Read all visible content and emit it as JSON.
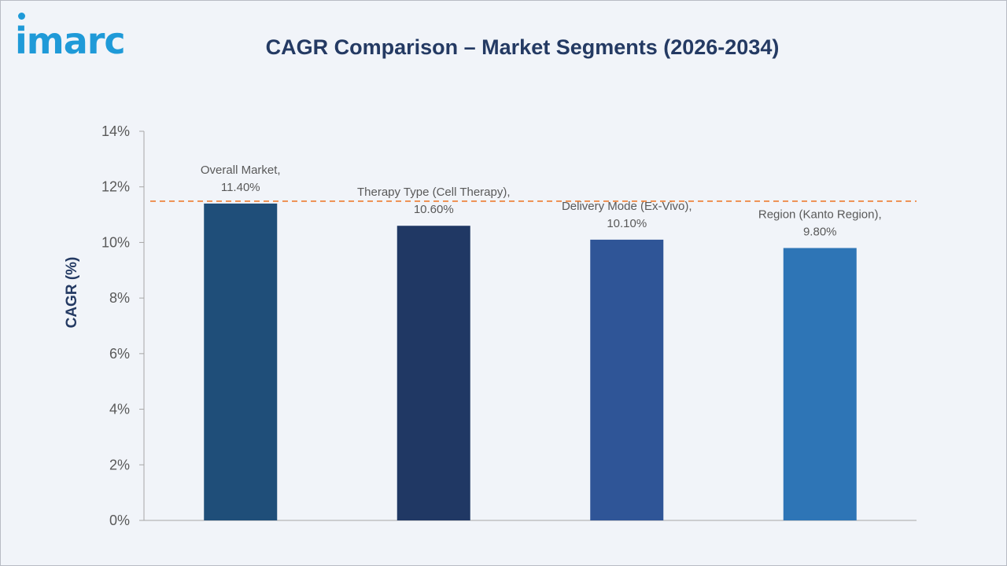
{
  "brand": {
    "logo_text": "imarc",
    "logo_color": "#1f9ad8"
  },
  "chart_data": {
    "type": "bar",
    "title": "CAGR Comparison – Market Segments (2026-2034)",
    "xlabel": "",
    "ylabel": "CAGR (%)",
    "ylim": [
      0,
      14
    ],
    "yticks": [
      "0%",
      "2%",
      "4%",
      "6%",
      "8%",
      "10%",
      "12%",
      "14%"
    ],
    "ytick_values": [
      0,
      2,
      4,
      6,
      8,
      10,
      12,
      14
    ],
    "grid": false,
    "legend": "none",
    "categories": [
      "Overall Market",
      "Therapy Type (Cell Therapy)",
      "Delivery Mode (Ex-Vivo)",
      "Region (Kanto Region)"
    ],
    "values": [
      11.4,
      10.6,
      10.1,
      9.8
    ],
    "data_labels": [
      [
        "Overall Market,",
        "11.40%"
      ],
      [
        "Therapy Type (Cell Therapy),",
        "10.60%"
      ],
      [
        "Delivery Mode (Ex-Vivo),",
        "10.10%"
      ],
      [
        "Region (Kanto Region),",
        "9.80%"
      ]
    ],
    "colors": [
      "#1f4e79",
      "#203864",
      "#2f5597",
      "#2e75b6"
    ],
    "reference_line": {
      "value": 11.4,
      "color": "#ed7d31",
      "style": "dashed"
    }
  }
}
